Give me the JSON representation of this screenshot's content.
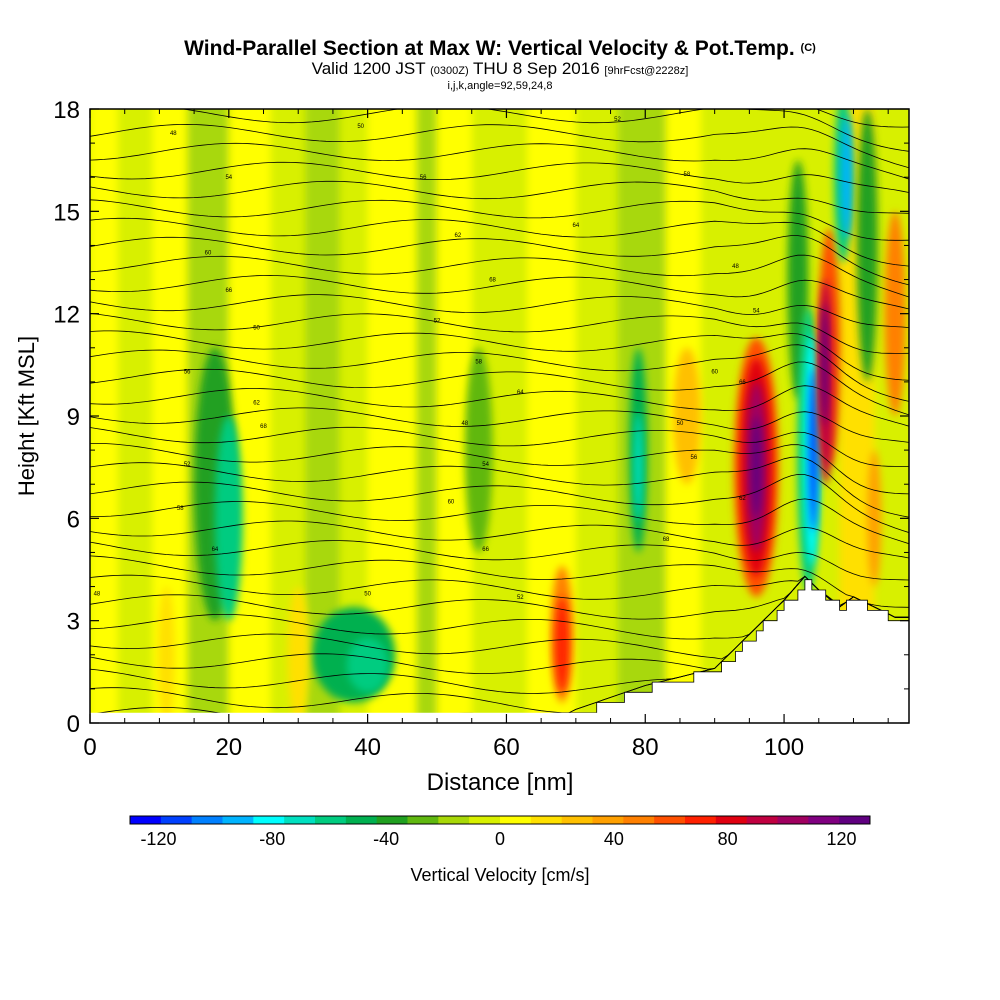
{
  "chart_data": {
    "type": "heatmap",
    "title": {
      "main": "Wind-Parallel Section at Max W: Vertical Velocity & Pot.Temp.",
      "main_unit": "(C)",
      "valid_prefix": "Valid 1200 JST",
      "valid_z": "(0300Z)",
      "valid_date": "THU 8 Sep 2016",
      "fcst": "[9hrFcst@2228z]",
      "indices": "i,j,k,angle=92,59,24,8"
    },
    "xlabel": "Distance [nm]",
    "ylabel": "Height [Kft MSL]",
    "xlim": [
      0,
      118
    ],
    "ylim": [
      0,
      18
    ],
    "x_ticks": [
      "0",
      "20",
      "40",
      "60",
      "80",
      "100"
    ],
    "y_ticks": [
      "0",
      "3",
      "6",
      "9",
      "12",
      "15",
      "18"
    ],
    "colorbar": {
      "label": "Vertical Velocity [cm/s]",
      "range": [
        -130,
        130
      ],
      "tick_labels": [
        "-120",
        "-80",
        "-40",
        "0",
        "40",
        "80",
        "120"
      ],
      "colors": [
        "#0000ff",
        "#0040ff",
        "#0080ff",
        "#00b4ff",
        "#00ffff",
        "#00e0c0",
        "#00cc80",
        "#00b050",
        "#20a020",
        "#60b810",
        "#a8d808",
        "#d8f000",
        "#ffff00",
        "#ffe000",
        "#ffc000",
        "#ffa000",
        "#ff8000",
        "#ff5000",
        "#ff2000",
        "#e00010",
        "#c00040",
        "#a00060",
        "#800080",
        "#600080"
      ]
    },
    "contour_labels": [
      "48",
      "50",
      "52",
      "54",
      "56",
      "58",
      "60",
      "62",
      "64",
      "66",
      "68"
    ],
    "features": [
      {
        "name": "updraft",
        "x": 96,
        "y_range": [
          4.5,
          10.5
        ],
        "peak_cm_s": 130
      },
      {
        "name": "downdraft",
        "x": 104,
        "y_range": [
          4.5,
          11
        ],
        "peak_cm_s": -120
      },
      {
        "name": "updraft",
        "x": 106,
        "y_range": [
          7,
          13.5
        ],
        "peak_cm_s": 120
      },
      {
        "name": "updraft",
        "x": 68,
        "y_range": [
          1,
          4.5
        ],
        "peak_cm_s": 70
      }
    ],
    "terrain_kft": [
      [
        67,
        0
      ],
      [
        70,
        0.3
      ],
      [
        80,
        1
      ],
      [
        90,
        1.5
      ],
      [
        100,
        3.5
      ],
      [
        103,
        4.2
      ],
      [
        105,
        3.8
      ],
      [
        108,
        3.3
      ],
      [
        110,
        3.6
      ],
      [
        113,
        3.3
      ],
      [
        116,
        3
      ],
      [
        118,
        3
      ]
    ]
  }
}
